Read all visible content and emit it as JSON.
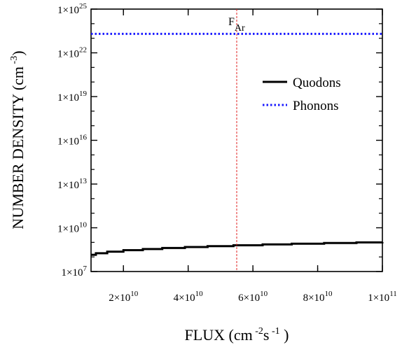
{
  "chart_data": {
    "type": "line",
    "xlabel": {
      "base": "FLUX (cm",
      "exp1": " -2",
      "mid": "s",
      "exp2": " -1",
      "tail": " )"
    },
    "ylabel": {
      "base": "NUMBER DENSITY (cm",
      "exp": " -3",
      "tail": ")"
    },
    "x_scale": "linear",
    "y_scale": "log",
    "xlim": [
      10000000000.0,
      100000000000.0
    ],
    "ylim": [
      10000000.0,
      1e+25
    ],
    "x_ticks": [
      {
        "value": 20000000000.0,
        "mant": "2×10",
        "exp": "10"
      },
      {
        "value": 40000000000.0,
        "mant": "4×10",
        "exp": "10"
      },
      {
        "value": 60000000000.0,
        "mant": "6×10",
        "exp": "10"
      },
      {
        "value": 80000000000.0,
        "mant": "8×10",
        "exp": "10"
      },
      {
        "value": 100000000000.0,
        "mant": "1×10",
        "exp": "11"
      }
    ],
    "y_ticks": [
      {
        "value": 10000000.0,
        "mant": "1×10",
        "exp": "7"
      },
      {
        "value": 10000000000.0,
        "mant": "1×10",
        "exp": "10"
      },
      {
        "value": 10000000000000.0,
        "mant": "1×10",
        "exp": "13"
      },
      {
        "value": 1e+16,
        "mant": "1×10",
        "exp": "16"
      },
      {
        "value": 1e+19,
        "mant": "1×10",
        "exp": "19"
      },
      {
        "value": 1e+22,
        "mant": "1×10",
        "exp": "22"
      },
      {
        "value": 1e+25,
        "mant": "1×10",
        "exp": "25"
      }
    ],
    "series": [
      {
        "name": "Quodons",
        "color": "#000000",
        "style": "solid-stepped",
        "points": [
          [
            10000000000.0,
            140000000.0
          ],
          [
            11500000000.0,
            180000000.0
          ],
          [
            15000000000.0,
            230000000.0
          ],
          [
            20000000000.0,
            290000000.0
          ],
          [
            26000000000.0,
            350000000.0
          ],
          [
            32000000000.0,
            410000000.0
          ],
          [
            39000000000.0,
            480000000.0
          ],
          [
            46000000000.0,
            550000000.0
          ],
          [
            54000000000.0,
            630000000.0
          ],
          [
            63000000000.0,
            720000000.0
          ],
          [
            72000000000.0,
            810000000.0
          ],
          [
            82000000000.0,
            900000000.0
          ],
          [
            92000000000.0,
            990000000.0
          ],
          [
            100000000000.0,
            1050000000.0
          ]
        ]
      },
      {
        "name": "Phonons",
        "color": "#1a1aff",
        "style": "dotted",
        "points": [
          [
            10000000000.0,
            2e+23
          ],
          [
            100000000000.0,
            2e+23
          ]
        ]
      }
    ],
    "annotations": [
      {
        "label": "F",
        "sub": "Ar",
        "x": 55000000000.0,
        "color": "#e02020",
        "style": "dashed-vertical"
      }
    ],
    "legend_placement": "right-upper",
    "grid": false
  }
}
